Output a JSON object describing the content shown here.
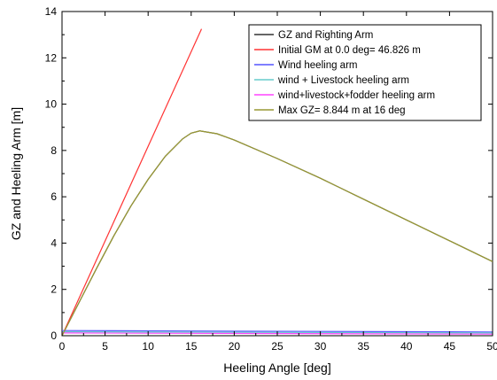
{
  "chart_data": {
    "type": "line",
    "xlabel": "Heeling Angle [deg]",
    "ylabel": "GZ and Heeling Arm [m]",
    "xlim": [
      0,
      50
    ],
    "ylim": [
      0,
      14
    ],
    "xticks": [
      0,
      5,
      10,
      15,
      20,
      25,
      30,
      35,
      40,
      45,
      50
    ],
    "yticks": [
      0,
      2,
      4,
      6,
      8,
      10,
      12,
      14
    ],
    "legend_position": "top-right",
    "grid": false,
    "series": [
      {
        "name": "GZ and Righting Arm",
        "color": "#333333",
        "x": [
          0,
          2,
          4,
          6,
          8,
          10,
          12,
          14,
          15,
          16,
          18,
          20,
          25,
          30,
          35,
          40,
          45,
          50
        ],
        "y": [
          0,
          1.45,
          2.9,
          4.3,
          5.6,
          6.75,
          7.75,
          8.5,
          8.75,
          8.844,
          8.72,
          8.45,
          7.65,
          6.8,
          5.9,
          5.0,
          4.1,
          3.2
        ]
      },
      {
        "name": "Initial GM at 0.0 deg= 46.826 m",
        "color": "#ff3333",
        "x": [
          0,
          16.2
        ],
        "y": [
          0,
          13.25
        ]
      },
      {
        "name": "Wind heeling arm",
        "color": "#5555ff",
        "x": [
          0,
          50
        ],
        "y": [
          0.22,
          0.16
        ]
      },
      {
        "name": "wind + Livestock heeling arm",
        "color": "#66cccc",
        "x": [
          0,
          50
        ],
        "y": [
          0.17,
          0.12
        ]
      },
      {
        "name": "wind+livestock+fodder heeling arm",
        "color": "#ff44ff",
        "x": [
          0,
          50
        ],
        "y": [
          0.12,
          0.07
        ]
      },
      {
        "name": "Max GZ= 8.844 m at 16 deg",
        "color": "#999933",
        "x": [
          0,
          2,
          4,
          6,
          8,
          10,
          12,
          14,
          15,
          16,
          18,
          20,
          25,
          30,
          35,
          40,
          45,
          50
        ],
        "y": [
          0,
          1.45,
          2.9,
          4.3,
          5.6,
          6.75,
          7.75,
          8.5,
          8.75,
          8.844,
          8.72,
          8.45,
          7.65,
          6.8,
          5.9,
          5.0,
          4.1,
          3.2
        ]
      }
    ]
  }
}
